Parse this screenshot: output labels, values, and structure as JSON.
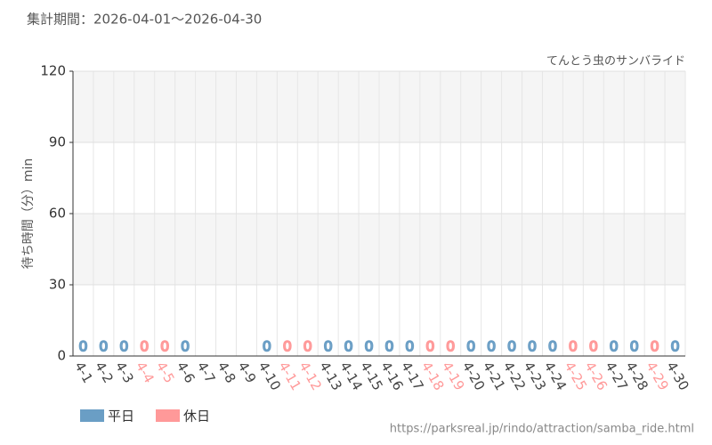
{
  "chart_data": {
    "type": "bar",
    "title": "集計期間：2026-04-01～2026-04-30",
    "subtitle": "てんとう虫のサンバライド",
    "y_label": "待ち時間（分）min",
    "source": "https://parksreal.jp/rindo/attraction/samba_ride.html",
    "categories": [
      "4-1",
      "4-2",
      "4-3",
      "4-4",
      "4-5",
      "4-6",
      "4-7",
      "4-8",
      "4-9",
      "4-10",
      "4-11",
      "4-12",
      "4-13",
      "4-14",
      "4-15",
      "4-16",
      "4-17",
      "4-18",
      "4-19",
      "4-20",
      "4-21",
      "4-22",
      "4-23",
      "4-24",
      "4-25",
      "4-26",
      "4-27",
      "4-28",
      "4-29",
      "4-30"
    ],
    "series": [
      {
        "name": "平日",
        "color": "#6a9ec5",
        "values": [
          0,
          0,
          0,
          null,
          null,
          0,
          null,
          null,
          null,
          0,
          null,
          null,
          0,
          0,
          0,
          0,
          0,
          null,
          null,
          0,
          0,
          0,
          0,
          0,
          null,
          null,
          0,
          0,
          null,
          0
        ]
      },
      {
        "name": "休日",
        "color": "#ff9999",
        "values": [
          null,
          null,
          null,
          0,
          0,
          null,
          null,
          null,
          null,
          null,
          0,
          0,
          null,
          null,
          null,
          null,
          null,
          0,
          0,
          null,
          null,
          null,
          null,
          null,
          0,
          0,
          null,
          null,
          0,
          null
        ]
      }
    ],
    "ylim": [
      0,
      120
    ],
    "yticks": [
      0,
      30,
      60,
      90,
      120
    ],
    "grid": true
  }
}
